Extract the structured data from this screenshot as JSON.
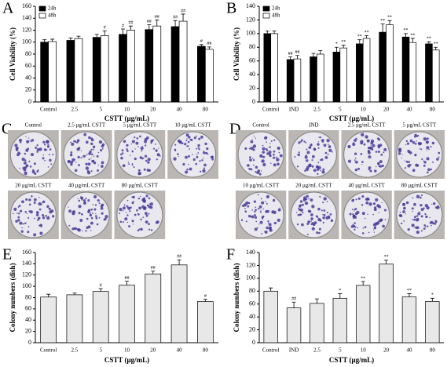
{
  "chart_data": [
    {
      "type": "bar",
      "label": "A",
      "ylabel": "Cell Viability (%)",
      "xlabel": "CSTT (μg/mL)",
      "categories": [
        "Control",
        "2.5",
        "5",
        "10",
        "20",
        "40",
        "80"
      ],
      "series": [
        {
          "name": "24h",
          "color": "#000000",
          "values": [
            100,
            103,
            108,
            113,
            121,
            126,
            93
          ],
          "errors": [
            4,
            4,
            5,
            9,
            8,
            10,
            3
          ],
          "annotations": [
            null,
            null,
            null,
            "#",
            "##",
            "##",
            "#"
          ]
        },
        {
          "name": "48h",
          "color": "#ffffff",
          "values": [
            101,
            106,
            111,
            120,
            127,
            135,
            88
          ],
          "errors": [
            4,
            4,
            8,
            7,
            10,
            12,
            4
          ],
          "annotations": [
            null,
            null,
            "#",
            "##",
            "##",
            "##",
            "##"
          ]
        }
      ],
      "ylim": [
        0,
        160
      ],
      "yticks": [
        0,
        20,
        40,
        60,
        80,
        100,
        120,
        140,
        160
      ],
      "legend": "upper left"
    },
    {
      "type": "bar",
      "label": "B",
      "ylabel": "Cell Viability (%)",
      "xlabel": "CSTT (μg/mL)",
      "categories": [
        "Control",
        "IND",
        "2.5",
        "5",
        "10",
        "20",
        "40",
        "80"
      ],
      "series": [
        {
          "name": "24h",
          "color": "#000000",
          "values": [
            100,
            62,
            66,
            73,
            85,
            102,
            95,
            85
          ],
          "errors": [
            4,
            4,
            5,
            7,
            6,
            12,
            5,
            3
          ],
          "annotations": [
            null,
            "##",
            null,
            "*",
            "**",
            "**",
            "**",
            "**"
          ]
        },
        {
          "name": "48h",
          "color": "#ffffff",
          "values": [
            100,
            63,
            70,
            79,
            93,
            113,
            87,
            76
          ],
          "errors": [
            4,
            5,
            5,
            4,
            4,
            6,
            6,
            4
          ],
          "annotations": [
            null,
            "##",
            null,
            "**",
            "**",
            "**",
            "**",
            "**"
          ]
        }
      ],
      "ylim": [
        0,
        140
      ],
      "yticks": [
        0,
        20,
        40,
        60,
        80,
        100,
        120,
        140
      ],
      "legend": "upper left"
    },
    {
      "type": "bar",
      "label": "E",
      "ylabel": "Colony numbers (dish)",
      "xlabel": "CSTT (μg/mL)",
      "categories": [
        "Control",
        "2.5",
        "5",
        "10",
        "20",
        "40",
        "80"
      ],
      "values": [
        81,
        85,
        91,
        102,
        122,
        138,
        73
      ],
      "errors": [
        5,
        3,
        5,
        7,
        5,
        9,
        4
      ],
      "annotations": [
        null,
        null,
        "#",
        "##",
        "##",
        "##",
        "#"
      ],
      "color": "#e8e8e8",
      "ylim": [
        0,
        160
      ],
      "yticks": [
        0,
        20,
        40,
        60,
        80,
        100,
        120,
        140,
        160
      ]
    },
    {
      "type": "bar",
      "label": "F",
      "ylabel": "Colony numbers (dish)",
      "xlabel": "CSTT (μg/mL)",
      "categories": [
        "Control",
        "IND",
        "2.5",
        "5",
        "10",
        "20",
        "40",
        "80"
      ],
      "values": [
        80,
        54,
        61,
        69,
        89,
        122,
        71,
        64
      ],
      "errors": [
        5,
        9,
        7,
        7,
        6,
        6,
        5,
        5
      ],
      "annotations": [
        null,
        "##",
        null,
        "*",
        "**",
        "**",
        "**",
        "*"
      ],
      "color": "#e8e8e8",
      "ylim": [
        0,
        140
      ],
      "yticks": [
        0,
        20,
        40,
        60,
        80,
        100,
        120,
        140
      ]
    }
  ],
  "photo_panels": [
    {
      "label": "C",
      "captions": [
        "Control",
        "2.5 μg/mL CSTT",
        "5 μg/mL CSTT",
        "10 μg/mL CSTT",
        "20 μg/mL CSTT",
        "40 μg/mL CSTT",
        "80 μg/mL CSTT"
      ]
    },
    {
      "label": "D",
      "captions": [
        "Control",
        "IND",
        "2.5 μg/mL CSTT",
        "5 μg/mL CSTT",
        "10 μg/mL CSTT",
        "20 μg/mL CSTT",
        "40 μg/mL CSTT",
        "80 μg/mL CSTT"
      ]
    }
  ]
}
